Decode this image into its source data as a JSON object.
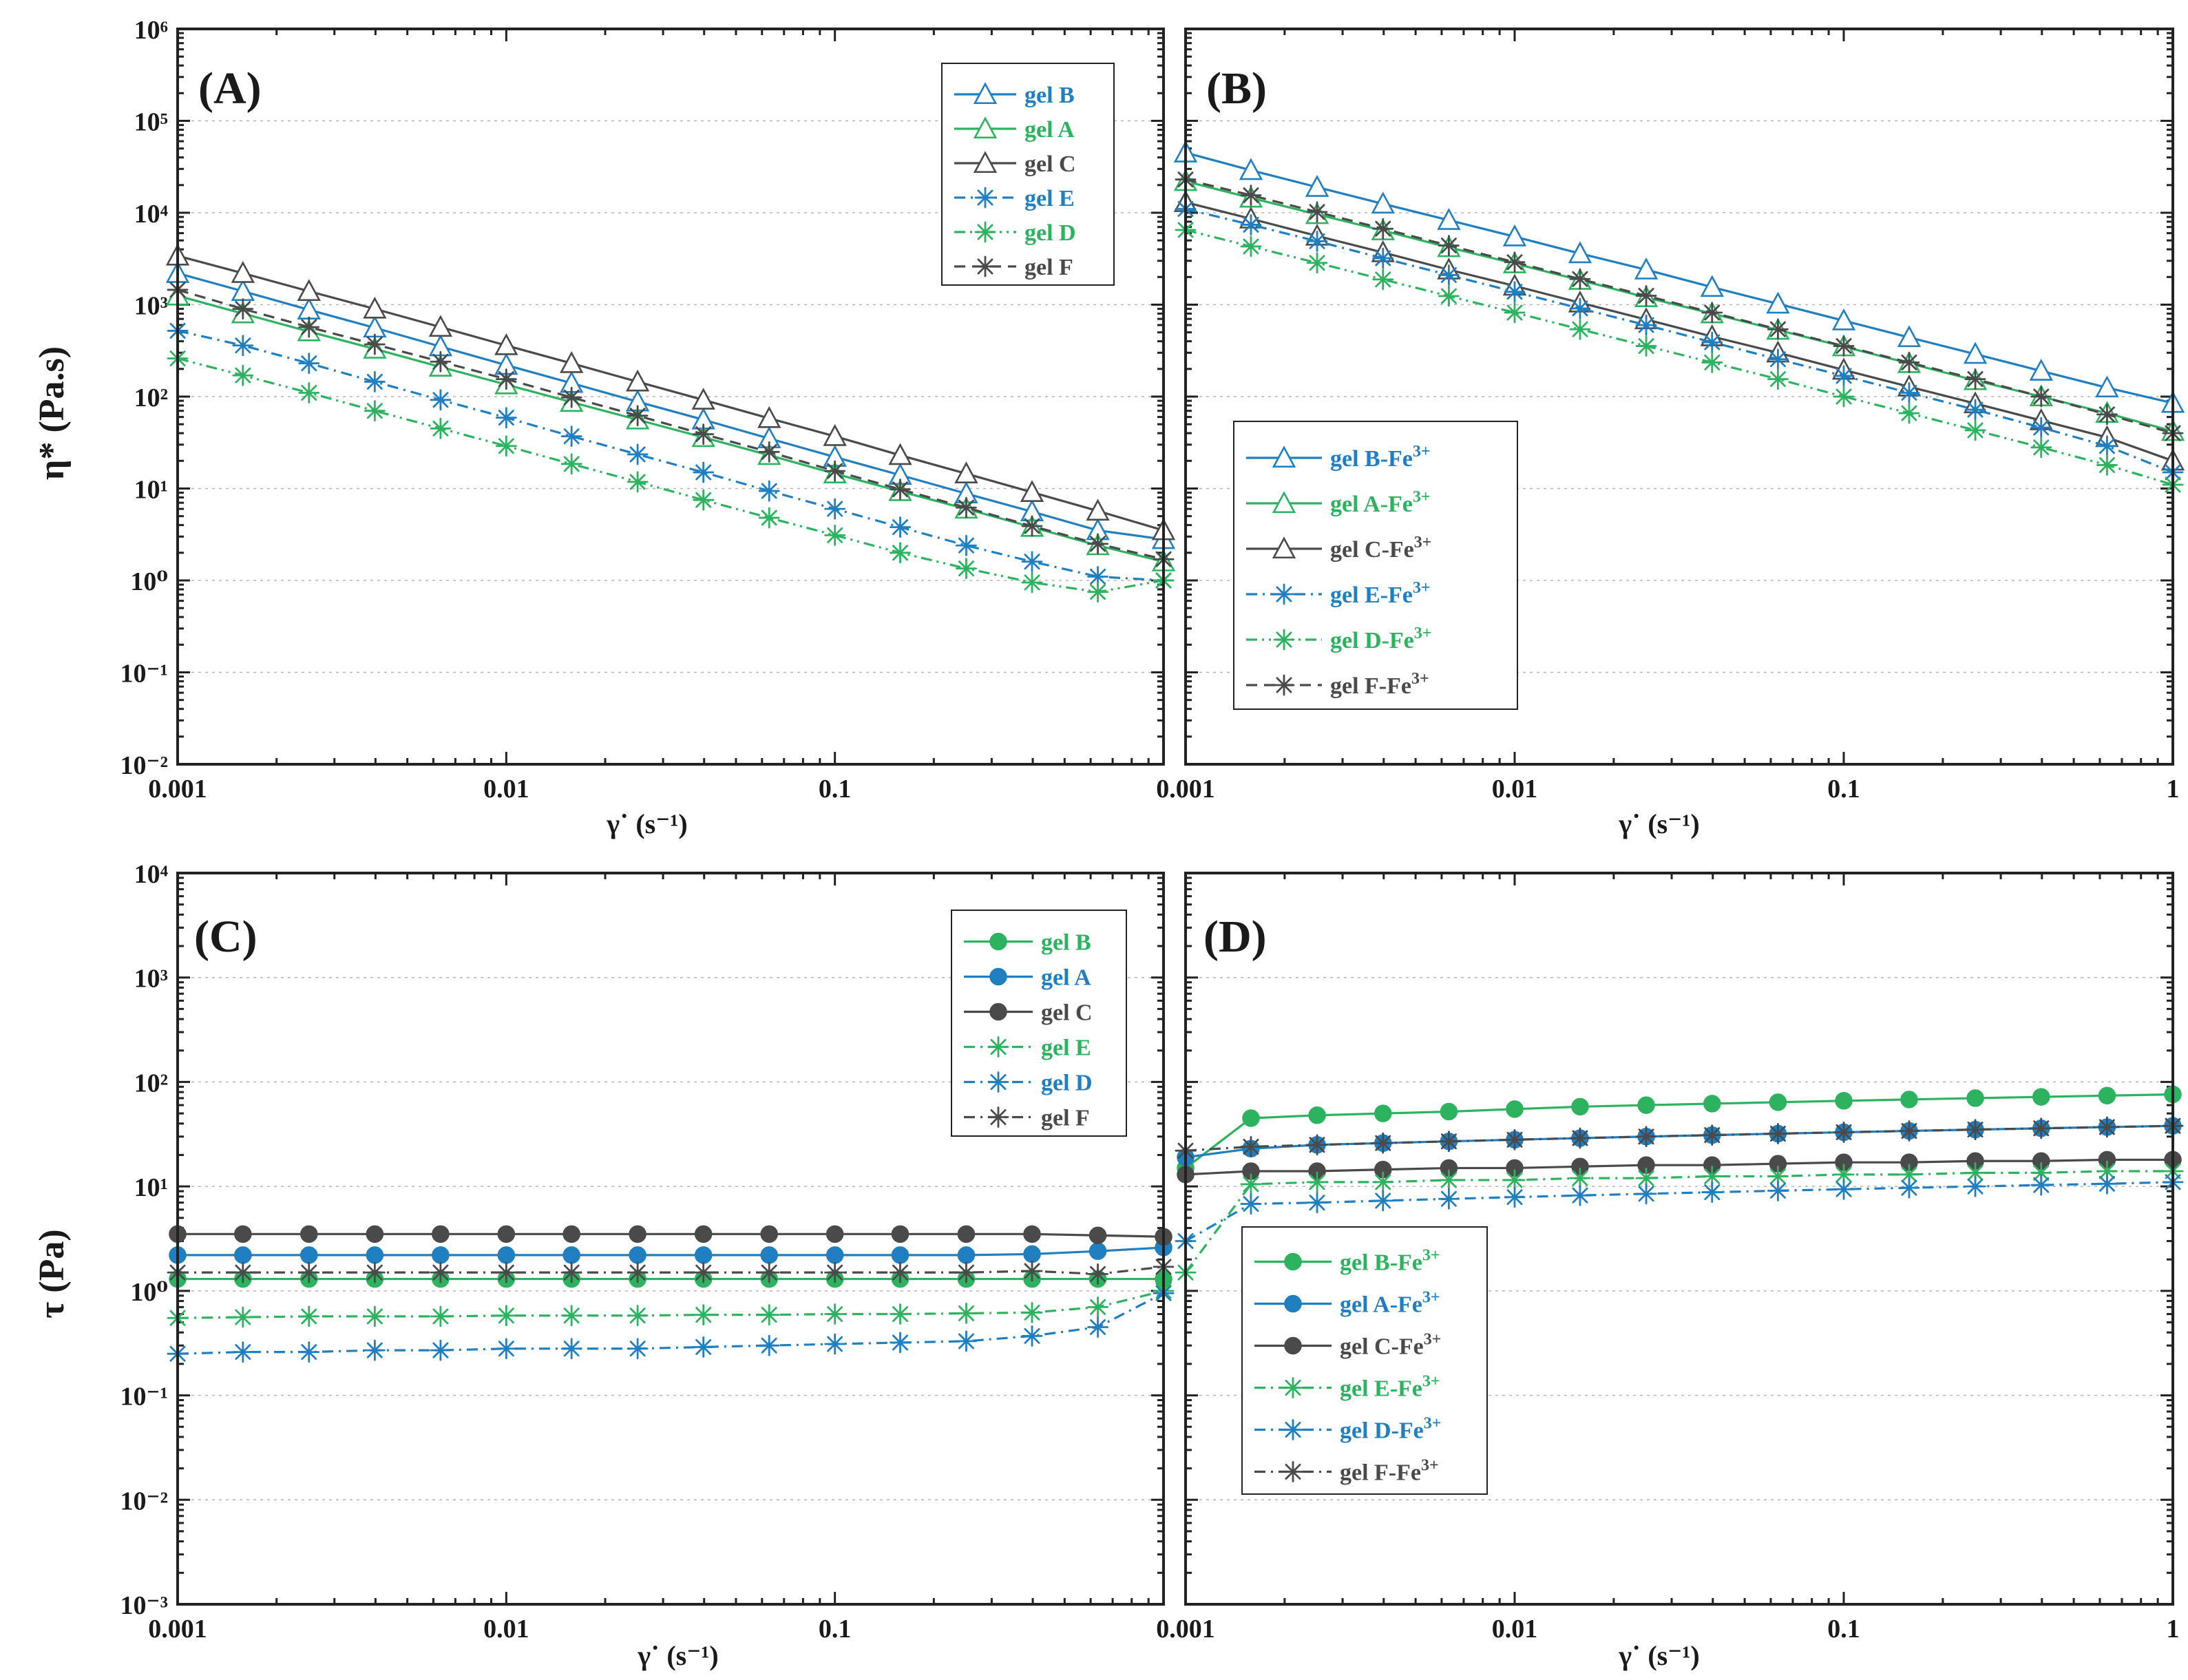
{
  "colors": {
    "blue": "#1f7fc0",
    "green": "#2db360",
    "gray": "#4a4a4a"
  },
  "chart_data": [
    {
      "type": "line",
      "panel": "(A)",
      "xlabel": "γ˙ (s⁻¹)",
      "ylabel": "η* (Pa.s)",
      "xscale": "log",
      "yscale": "log",
      "xlim": [
        0.001,
        1
      ],
      "ylim": [
        0.01,
        1000000
      ],
      "xticks": [
        "0.001",
        "0.01",
        "0.1",
        ""
      ],
      "yticks": [
        "10⁻²",
        "10⁻¹",
        "10⁰",
        "10¹",
        "10²",
        "10³",
        "10⁴",
        "10⁵",
        "10⁶"
      ],
      "legend_position": "top-right",
      "x": [
        0.001,
        0.00158,
        0.00251,
        0.00398,
        0.00631,
        0.01,
        0.0158,
        0.0251,
        0.0398,
        0.0631,
        0.1,
        0.158,
        0.251,
        0.398,
        0.631,
        1
      ],
      "series": [
        {
          "name": "gel B",
          "color": "blue",
          "marker": "triangle",
          "dash": "solid",
          "values": [
            2200,
            1400,
            880,
            560,
            350,
            220,
            140,
            88,
            56,
            35,
            22,
            14,
            8.8,
            5.6,
            3.5,
            2.8
          ]
        },
        {
          "name": "gel A",
          "color": "green",
          "marker": "triangle",
          "dash": "solid",
          "values": [
            1250,
            800,
            510,
            330,
            210,
            135,
            87,
            56,
            36,
            23,
            14.5,
            9.3,
            6,
            3.8,
            2.4,
            1.6
          ]
        },
        {
          "name": "gel C",
          "color": "gray",
          "marker": "triangle",
          "dash": "solid",
          "values": [
            3400,
            2200,
            1400,
            900,
            570,
            360,
            230,
            145,
            92,
            58,
            37,
            23,
            14.5,
            9.1,
            5.7,
            3.5
          ]
        },
        {
          "name": "gel E",
          "color": "blue",
          "marker": "asterisk",
          "dash": "dashdot",
          "values": [
            520,
            360,
            230,
            145,
            92,
            59,
            37,
            23.5,
            15,
            9.4,
            6,
            3.8,
            2.4,
            1.6,
            1.1,
            1.0
          ]
        },
        {
          "name": "gel D",
          "color": "green",
          "marker": "asterisk",
          "dash": "dashdotdot",
          "values": [
            260,
            170,
            110,
            70,
            45,
            29,
            18.5,
            11.8,
            7.5,
            4.8,
            3.1,
            2.0,
            1.35,
            0.95,
            0.75,
            1.0
          ]
        },
        {
          "name": "gel F",
          "color": "gray",
          "marker": "asterisk",
          "dash": "dash",
          "values": [
            1450,
            900,
            570,
            370,
            240,
            155,
            98,
            62,
            39,
            25,
            15.5,
            9.8,
            6.2,
            3.9,
            2.5,
            1.7
          ]
        }
      ]
    },
    {
      "type": "line",
      "panel": "(B)",
      "xlabel": "γ˙ (s⁻¹)",
      "ylabel": "",
      "xscale": "log",
      "yscale": "log",
      "xlim": [
        0.001,
        1
      ],
      "ylim": [
        0.01,
        1000000
      ],
      "xticks": [
        "0.001",
        "0.01",
        "0.1",
        "1"
      ],
      "yticks": [],
      "legend_position": "bottom-left",
      "x": [
        0.001,
        0.00158,
        0.00251,
        0.00398,
        0.00631,
        0.01,
        0.0158,
        0.0251,
        0.0398,
        0.0631,
        0.1,
        0.158,
        0.251,
        0.398,
        0.631,
        1
      ],
      "series": [
        {
          "name": "gel B-Fe3+",
          "color": "blue",
          "marker": "triangle",
          "dash": "solid",
          "values": [
            45000,
            29000,
            19000,
            12500,
            8300,
            5500,
            3600,
            2400,
            1550,
            1020,
            670,
            440,
            290,
            190,
            125,
            85
          ]
        },
        {
          "name": "gel A-Fe3+",
          "color": "green",
          "marker": "triangle",
          "dash": "solid",
          "values": [
            22000,
            14500,
            9600,
            6400,
            4200,
            2800,
            1850,
            1200,
            800,
            530,
            350,
            230,
            150,
            100,
            66,
            42
          ]
        },
        {
          "name": "gel C-Fe3+",
          "color": "gray",
          "marker": "triangle",
          "dash": "solid",
          "values": [
            13000,
            8600,
            5600,
            3700,
            2400,
            1600,
            1050,
            690,
            450,
            300,
            195,
            128,
            84,
            55,
            36,
            20
          ]
        },
        {
          "name": "gel E-Fe3+",
          "color": "blue",
          "marker": "asterisk",
          "dash": "dashdot",
          "values": [
            11000,
            7400,
            4900,
            3200,
            2100,
            1380,
            910,
            600,
            390,
            255,
            168,
            110,
            72,
            46,
            29,
            15
          ]
        },
        {
          "name": "gel D-Fe3+",
          "color": "green",
          "marker": "asterisk",
          "dash": "dashdotdot",
          "values": [
            6500,
            4300,
            2850,
            1880,
            1240,
            820,
            540,
            355,
            235,
            155,
            100,
            66,
            43,
            28,
            18,
            11
          ]
        },
        {
          "name": "gel F-Fe3+",
          "color": "gray",
          "marker": "asterisk",
          "dash": "dash",
          "values": [
            23000,
            15500,
            10200,
            6700,
            4400,
            2900,
            1900,
            1250,
            820,
            540,
            355,
            235,
            155,
            100,
            64,
            40
          ]
        }
      ]
    },
    {
      "type": "line",
      "panel": "(C)",
      "xlabel": "γ˙ (s⁻¹)",
      "ylabel": "τ (Pa)",
      "xscale": "log",
      "yscale": "log",
      "xlim": [
        0.001,
        1
      ],
      "ylim": [
        0.001,
        10000
      ],
      "xticks": [
        "0.001",
        "0.01",
        "0.1",
        ""
      ],
      "yticks": [
        "10⁻³",
        "10⁻²",
        "10⁻¹",
        "10⁰",
        "10¹",
        "10²",
        "10³",
        "10⁴"
      ],
      "legend_position": "top-right",
      "x": [
        0.001,
        0.00158,
        0.00251,
        0.00398,
        0.00631,
        0.01,
        0.0158,
        0.0251,
        0.0398,
        0.0631,
        0.1,
        0.158,
        0.251,
        0.398,
        0.631,
        1
      ],
      "series": [
        {
          "name": "gel B",
          "color": "green",
          "marker": "circle",
          "dash": "solid",
          "values": [
            1.3,
            1.3,
            1.3,
            1.3,
            1.3,
            1.3,
            1.3,
            1.3,
            1.3,
            1.3,
            1.3,
            1.3,
            1.3,
            1.3,
            1.3,
            1.3
          ]
        },
        {
          "name": "gel A",
          "color": "blue",
          "marker": "circle",
          "dash": "solid",
          "values": [
            2.2,
            2.2,
            2.2,
            2.2,
            2.2,
            2.2,
            2.2,
            2.2,
            2.2,
            2.2,
            2.2,
            2.2,
            2.2,
            2.25,
            2.4,
            2.6
          ]
        },
        {
          "name": "gel C",
          "color": "gray",
          "marker": "circle",
          "dash": "solid",
          "values": [
            3.5,
            3.5,
            3.5,
            3.5,
            3.5,
            3.5,
            3.5,
            3.5,
            3.5,
            3.5,
            3.5,
            3.5,
            3.5,
            3.5,
            3.4,
            3.3
          ]
        },
        {
          "name": "gel E",
          "color": "green",
          "marker": "asterisk",
          "dash": "dashdot",
          "values": [
            0.55,
            0.56,
            0.57,
            0.57,
            0.57,
            0.58,
            0.58,
            0.58,
            0.59,
            0.59,
            0.6,
            0.6,
            0.61,
            0.62,
            0.7,
            1.0
          ]
        },
        {
          "name": "gel D",
          "color": "blue",
          "marker": "asterisk",
          "dash": "dashdot",
          "values": [
            0.25,
            0.26,
            0.26,
            0.27,
            0.27,
            0.28,
            0.28,
            0.28,
            0.29,
            0.3,
            0.31,
            0.32,
            0.33,
            0.37,
            0.45,
            0.95
          ]
        },
        {
          "name": "gel F",
          "color": "gray",
          "marker": "asterisk",
          "dash": "dashdot",
          "values": [
            1.5,
            1.5,
            1.5,
            1.5,
            1.5,
            1.5,
            1.5,
            1.5,
            1.5,
            1.5,
            1.5,
            1.5,
            1.5,
            1.55,
            1.45,
            1.7
          ]
        }
      ]
    },
    {
      "type": "line",
      "panel": "(D)",
      "xlabel": "γ˙ (s⁻¹)",
      "ylabel": "",
      "xscale": "log",
      "yscale": "log",
      "xlim": [
        0.001,
        1
      ],
      "ylim": [
        0.001,
        10000
      ],
      "xticks": [
        "0.001",
        "0.01",
        "0.1",
        "1"
      ],
      "yticks": [],
      "legend_position": "bottom-left",
      "x": [
        0.001,
        0.00158,
        0.00251,
        0.00398,
        0.00631,
        0.01,
        0.0158,
        0.0251,
        0.0398,
        0.0631,
        0.1,
        0.158,
        0.251,
        0.398,
        0.631,
        1
      ],
      "series": [
        {
          "name": "gel B-Fe3+",
          "color": "green",
          "marker": "circle",
          "dash": "solid",
          "values": [
            15,
            45,
            48,
            50,
            52,
            55,
            58,
            60,
            62,
            64,
            66,
            68,
            70,
            72,
            74,
            76
          ]
        },
        {
          "name": "gel A-Fe3+",
          "color": "blue",
          "marker": "circle",
          "dash": "solid",
          "values": [
            19,
            23,
            25,
            26,
            27,
            28,
            29,
            30,
            31,
            32,
            33,
            34,
            35,
            36,
            37,
            38
          ]
        },
        {
          "name": "gel C-Fe3+",
          "color": "gray",
          "marker": "circle",
          "dash": "solid",
          "values": [
            13,
            14,
            14,
            14.5,
            15,
            15,
            15.5,
            16,
            16,
            16.5,
            17,
            17,
            17.5,
            17.5,
            18,
            18
          ]
        },
        {
          "name": "gel E-Fe3+",
          "color": "green",
          "marker": "asterisk",
          "dash": "dashdot",
          "values": [
            1.5,
            10.5,
            11,
            11,
            11.5,
            11.5,
            12,
            12,
            12.5,
            12.5,
            13,
            13,
            13.5,
            13.5,
            14,
            14
          ]
        },
        {
          "name": "gel D-Fe3+",
          "color": "blue",
          "marker": "asterisk",
          "dash": "dashdot",
          "values": [
            3,
            6.8,
            7,
            7.3,
            7.6,
            7.9,
            8.2,
            8.5,
            8.8,
            9.1,
            9.4,
            9.7,
            10,
            10.3,
            10.6,
            11
          ]
        },
        {
          "name": "gel F-Fe3+",
          "color": "gray",
          "marker": "asterisk",
          "dash": "dashdot",
          "values": [
            22,
            24,
            25,
            26,
            27,
            28,
            29,
            30,
            31,
            32,
            33,
            34,
            35,
            36,
            37,
            38
          ]
        }
      ]
    }
  ]
}
